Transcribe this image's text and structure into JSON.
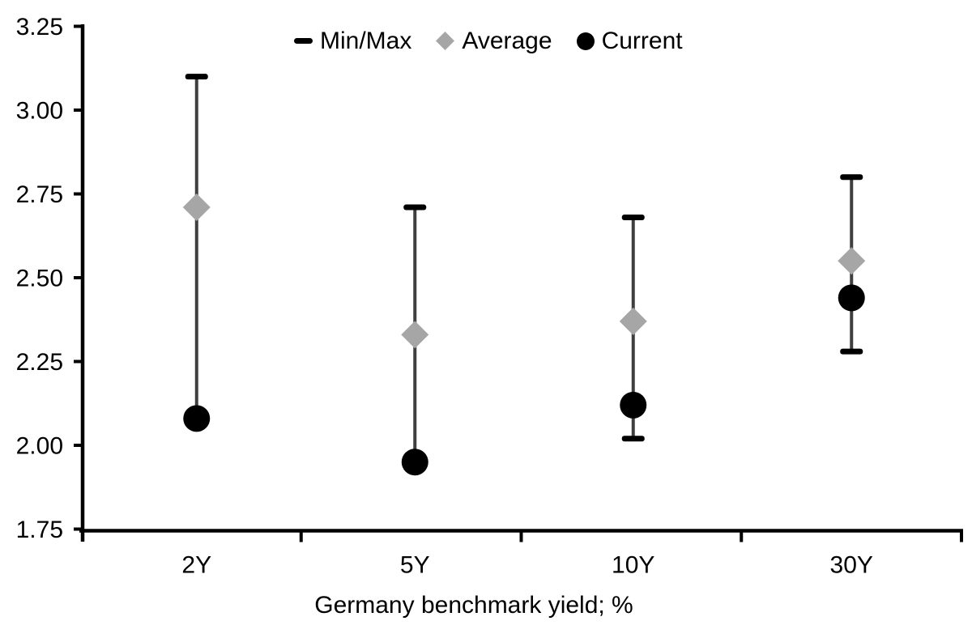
{
  "chart_data": {
    "type": "scatter",
    "subtype": "min-max-range-with-markers",
    "title": "",
    "xlabel": "Germany benchmark yield; %",
    "ylabel": "",
    "ylim": [
      1.75,
      3.25
    ],
    "ytick_step": 0.25,
    "ytick_labels": [
      "1.75",
      "2.00",
      "2.25",
      "2.50",
      "2.75",
      "3.00",
      "3.25"
    ],
    "grid": false,
    "legend_position": "top-center",
    "categories": [
      "2Y",
      "5Y",
      "10Y",
      "30Y"
    ],
    "series": [
      {
        "name": "Min/Max",
        "marker": "dash",
        "color": "#000000",
        "min": [
          2.08,
          1.95,
          2.02,
          2.28
        ],
        "max": [
          3.1,
          2.71,
          2.68,
          2.8
        ]
      },
      {
        "name": "Average",
        "marker": "diamond",
        "color": "#a6a6a6",
        "values": [
          2.71,
          2.33,
          2.37,
          2.55
        ]
      },
      {
        "name": "Current",
        "marker": "circle",
        "color": "#000000",
        "values": [
          2.08,
          1.95,
          2.12,
          2.44
        ]
      }
    ],
    "range_line_color": "#3f3f3f",
    "axis_color": "#000000",
    "text_color": "#000000"
  }
}
